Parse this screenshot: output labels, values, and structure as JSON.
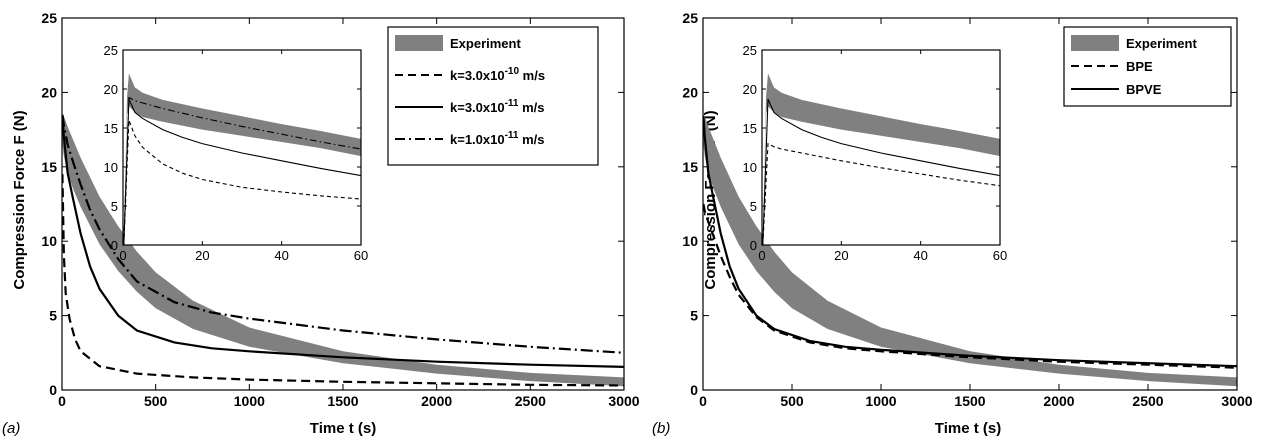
{
  "chart_data": [
    {
      "type": "line",
      "panel_label": "(a)",
      "xlabel": "Time t (s)",
      "ylabel": "Compression Force F (N)",
      "xlim": [
        0,
        3000
      ],
      "ylim": [
        0,
        25
      ],
      "xticks": [
        "0",
        "500",
        "1000",
        "1500",
        "2000",
        "2500",
        "3000"
      ],
      "yticks": [
        "0",
        "5",
        "10",
        "15",
        "20",
        "25"
      ],
      "legend_position": "top-right",
      "band": {
        "name": "Experiment",
        "color": "#808080",
        "t": [
          2,
          10,
          30,
          60,
          100,
          200,
          300,
          400,
          500,
          700,
          1000,
          1500,
          2000,
          2500,
          3000
        ],
        "lower": [
          16.5,
          15.7,
          14.6,
          13.5,
          12.3,
          9.8,
          8.0,
          6.6,
          5.5,
          4.1,
          2.9,
          1.8,
          1.1,
          0.6,
          0.25
        ],
        "upper": [
          18.5,
          18.4,
          17.7,
          16.8,
          15.6,
          13.0,
          11.0,
          9.3,
          7.9,
          6.0,
          4.2,
          2.6,
          1.7,
          1.15,
          0.85
        ]
      },
      "series": [
        {
          "name": "k=3.0x10",
          "exp": "-10",
          "unit": "m/s",
          "dash": "9,5",
          "t": [
            2,
            10,
            20,
            40,
            70,
            100,
            200,
            400,
            700,
            1000,
            1500,
            2000,
            2500,
            3000
          ],
          "values": [
            14.5,
            9.0,
            6.5,
            4.8,
            3.4,
            2.6,
            1.6,
            1.1,
            0.85,
            0.7,
            0.55,
            0.45,
            0.35,
            0.3
          ]
        },
        {
          "name": "k=3.0x10",
          "exp": "-11",
          "unit": "m/s",
          "dash": "",
          "t": [
            2,
            10,
            30,
            60,
            100,
            150,
            200,
            300,
            400,
            600,
            800,
            1000,
            1500,
            2000,
            2500,
            3000
          ],
          "values": [
            18.4,
            17.0,
            14.6,
            12.8,
            10.5,
            8.3,
            6.8,
            5.0,
            4.0,
            3.2,
            2.8,
            2.6,
            2.2,
            1.9,
            1.7,
            1.55
          ]
        },
        {
          "name": "k=1.0x10",
          "exp": "-11",
          "unit": "m/s",
          "dash": "12,4,2,4",
          "t": [
            2,
            10,
            30,
            60,
            100,
            150,
            200,
            300,
            400,
            600,
            800,
            1000,
            1500,
            2000,
            2500,
            3000
          ],
          "values": [
            18.5,
            17.8,
            16.5,
            15.3,
            13.8,
            12.1,
            10.8,
            8.8,
            7.3,
            5.9,
            5.2,
            4.8,
            4.0,
            3.4,
            2.9,
            2.5
          ]
        }
      ],
      "inset": {
        "xlim": [
          0,
          60
        ],
        "ylim": [
          0,
          25
        ],
        "xticks": [
          "0",
          "20",
          "40",
          "60"
        ],
        "yticks": [
          "0",
          "5",
          "10",
          "15",
          "20",
          "25"
        ],
        "band": {
          "t": [
            0.2,
            1.0,
            1.5,
            3,
            5,
            10,
            20,
            30,
            40,
            50,
            60
          ],
          "lower": [
            0,
            16.8,
            17.8,
            17.0,
            16.4,
            15.8,
            14.8,
            14.0,
            13.2,
            12.4,
            11.4
          ],
          "upper": [
            0,
            18.9,
            22.0,
            20.2,
            19.5,
            18.6,
            17.5,
            16.5,
            15.5,
            14.6,
            13.6
          ]
        },
        "series": [
          {
            "t": [
              0.2,
              1.5,
              3,
              5,
              10,
              15,
              20,
              30,
              40,
              50,
              60
            ],
            "values": [
              0,
              16.0,
              14.0,
              12.5,
              10.4,
              9.2,
              8.4,
              7.4,
              6.8,
              6.3,
              5.9
            ]
          },
          {
            "t": [
              0.2,
              1.5,
              3,
              5,
              10,
              15,
              20,
              30,
              40,
              50,
              60
            ],
            "values": [
              0,
              18.7,
              17.0,
              16.2,
              14.8,
              13.8,
              13.0,
              11.8,
              10.8,
              9.8,
              8.9
            ]
          },
          {
            "t": [
              0.2,
              1.5,
              3,
              5,
              10,
              20,
              30,
              40,
              50,
              60
            ],
            "values": [
              0,
              18.9,
              18.5,
              18.2,
              17.5,
              16.3,
              15.2,
              14.2,
              13.2,
              12.3
            ]
          }
        ]
      }
    },
    {
      "type": "line",
      "panel_label": "(b)",
      "xlabel": "Time t (s)",
      "ylabel": "Compression Force F (N)",
      "xlim": [
        0,
        3000
      ],
      "ylim": [
        0,
        25
      ],
      "xticks": [
        "0",
        "500",
        "1000",
        "1500",
        "2000",
        "2500",
        "3000"
      ],
      "yticks": [
        "0",
        "5",
        "10",
        "15",
        "20",
        "25"
      ],
      "legend_position": "top-right",
      "band": {
        "name": "Experiment",
        "color": "#808080",
        "t": [
          2,
          10,
          30,
          60,
          100,
          200,
          300,
          400,
          500,
          700,
          1000,
          1500,
          2000,
          2500,
          3000
        ],
        "lower": [
          16.5,
          15.7,
          14.6,
          13.5,
          12.3,
          9.8,
          8.0,
          6.6,
          5.5,
          4.1,
          2.9,
          1.8,
          1.1,
          0.6,
          0.25
        ],
        "upper": [
          18.5,
          18.4,
          17.7,
          16.8,
          15.6,
          13.0,
          11.0,
          9.3,
          7.9,
          6.0,
          4.2,
          2.6,
          1.7,
          1.15,
          0.85
        ]
      },
      "series": [
        {
          "name": "BPE",
          "dash": "9,5",
          "t": [
            2,
            10,
            30,
            60,
            100,
            150,
            200,
            300,
            400,
            600,
            800,
            1000,
            1500,
            2000,
            2500,
            3000
          ],
          "values": [
            12.5,
            12.0,
            11.3,
            10.3,
            9.0,
            7.6,
            6.4,
            4.9,
            4.0,
            3.2,
            2.8,
            2.6,
            2.2,
            1.9,
            1.7,
            1.5
          ]
        },
        {
          "name": "BPVE",
          "dash": "",
          "t": [
            2,
            10,
            30,
            60,
            100,
            150,
            200,
            300,
            400,
            600,
            800,
            1000,
            1500,
            2000,
            2500,
            3000
          ],
          "values": [
            18.4,
            17.0,
            14.6,
            12.8,
            10.5,
            8.3,
            6.8,
            5.0,
            4.1,
            3.3,
            2.9,
            2.7,
            2.3,
            2.0,
            1.8,
            1.6
          ]
        }
      ],
      "inset": {
        "xlim": [
          0,
          60
        ],
        "ylim": [
          0,
          25
        ],
        "xticks": [
          "0",
          "20",
          "40",
          "60"
        ],
        "yticks": [
          "0",
          "5",
          "10",
          "15",
          "20",
          "25"
        ],
        "band": {
          "t": [
            0.2,
            1.0,
            1.5,
            3,
            5,
            10,
            20,
            30,
            40,
            50,
            60
          ],
          "lower": [
            0,
            16.8,
            17.8,
            17.0,
            16.4,
            15.8,
            14.8,
            14.0,
            13.2,
            12.4,
            11.4
          ],
          "upper": [
            0,
            18.9,
            22.0,
            20.2,
            19.5,
            18.6,
            17.5,
            16.5,
            15.5,
            14.6,
            13.6
          ]
        },
        "series": [
          {
            "t": [
              0.2,
              1.5,
              3,
              5,
              10,
              20,
              30,
              40,
              50,
              60
            ],
            "values": [
              0,
              13.0,
              12.6,
              12.3,
              11.8,
              10.8,
              9.9,
              9.1,
              8.3,
              7.6
            ]
          },
          {
            "t": [
              0.2,
              1.5,
              3,
              5,
              10,
              15,
              20,
              30,
              40,
              50,
              60
            ],
            "values": [
              0,
              18.7,
              17.0,
              16.2,
              14.8,
              13.8,
              13.0,
              11.8,
              10.8,
              9.8,
              8.9
            ]
          }
        ]
      }
    }
  ]
}
